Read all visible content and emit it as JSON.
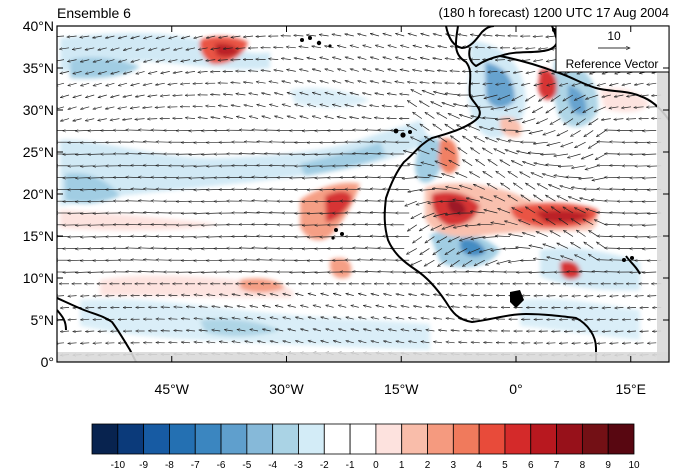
{
  "header": {
    "ensemble_label": "Ensemble 6",
    "forecast_label": "(180 h forecast) 1200 UTC 17 Aug 2004"
  },
  "reference_vector": {
    "magnitude_label": "10",
    "caption": "Reference Vector"
  },
  "map": {
    "lat_range": [
      0,
      40
    ],
    "lon_range": [
      -60,
      20
    ],
    "lat_labels": [
      {
        "lat": 0,
        "text": "0°"
      },
      {
        "lat": 5,
        "text": "5°N"
      },
      {
        "lat": 10,
        "text": "10°N"
      },
      {
        "lat": 15,
        "text": "15°N"
      },
      {
        "lat": 20,
        "text": "20°N"
      },
      {
        "lat": 25,
        "text": "25°N"
      },
      {
        "lat": 30,
        "text": "30°N"
      },
      {
        "lat": 35,
        "text": "35°N"
      },
      {
        "lat": 40,
        "text": "40°N"
      }
    ],
    "lon_labels": [
      {
        "lon": -45,
        "text": "45°W"
      },
      {
        "lon": -30,
        "text": "30°W"
      },
      {
        "lon": -15,
        "text": "15°W"
      },
      {
        "lon": 0,
        "text": "0°"
      },
      {
        "lon": 15,
        "text": "15°E"
      }
    ]
  },
  "colorbar": {
    "labels": [
      "-10",
      "-9",
      "-8",
      "-7",
      "-6",
      "-5",
      "-4",
      "-3",
      "-2",
      "-1",
      "0",
      "1",
      "2",
      "3",
      "4",
      "5",
      "6",
      "7",
      "8",
      "9",
      "10"
    ],
    "colors": [
      "#08234f",
      "#0b3a7a",
      "#175ba3",
      "#2470b2",
      "#3b86c0",
      "#5f9fcd",
      "#86b9d9",
      "#aad3e5",
      "#d3ecf7",
      "#ffffff",
      "#ffffff",
      "#fde2de",
      "#f9bdaa",
      "#f59a7f",
      "#f07a5c",
      "#e84b3a",
      "#d42a2a",
      "#b8181f",
      "#97111a",
      "#731015",
      "#580711"
    ]
  }
}
